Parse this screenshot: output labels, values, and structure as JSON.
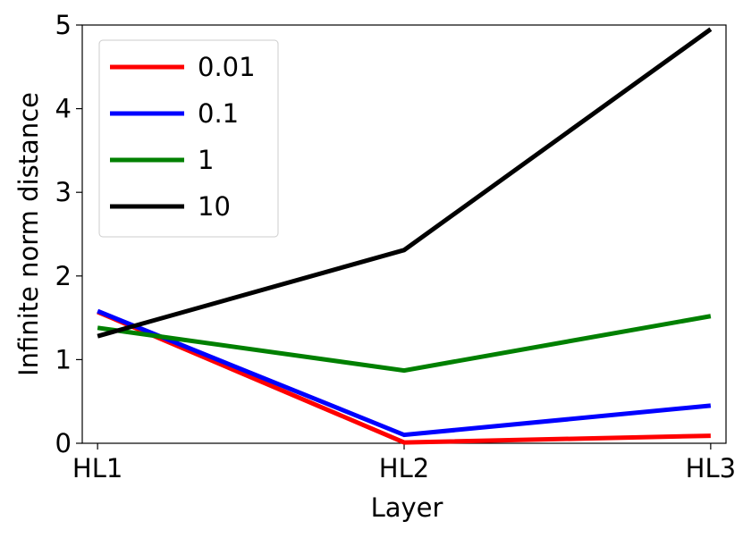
{
  "chart_data": {
    "type": "line",
    "x_label": "Layer",
    "y_label": "Infinite norm distance",
    "categories": [
      "HL1",
      "HL2",
      "HL3"
    ],
    "series": [
      {
        "name": "0.01",
        "color": "#ff0000",
        "values": [
          1.57,
          0.01,
          0.09
        ]
      },
      {
        "name": "0.1",
        "color": "#0000ff",
        "values": [
          1.58,
          0.1,
          0.45
        ]
      },
      {
        "name": "1",
        "color": "#008000",
        "values": [
          1.38,
          0.87,
          1.52
        ]
      },
      {
        "name": "10",
        "color": "#000000",
        "values": [
          1.28,
          2.31,
          4.95
        ]
      }
    ],
    "ylim": [
      0,
      5
    ],
    "yticks": [
      0,
      1,
      2,
      3,
      4,
      5
    ],
    "legend": "upper left",
    "grid": false
  }
}
